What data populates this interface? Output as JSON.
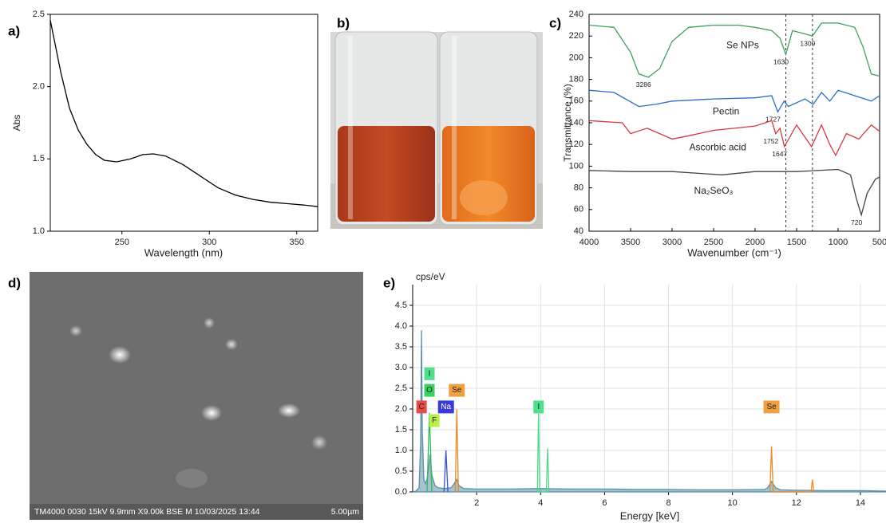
{
  "panel_labels": [
    "a)",
    "b)",
    "c)",
    "d)",
    "e)"
  ],
  "sem": {
    "caption": "TM4000 0030 15kV 9.9mm X9.00k BSE M 10/03/2025 13:44",
    "scale_bar": "5.00µm"
  },
  "chart_data": [
    {
      "type": "line",
      "x_label": "Wavelength (nm)",
      "y_label": "Abs",
      "xlim": [
        209,
        362
      ],
      "ylim": [
        1,
        2.5
      ],
      "xticks": [
        250,
        300,
        350
      ],
      "yticks": [
        {
          "value": 1,
          "label": "1.0"
        },
        {
          "value": 1.5,
          "label": "1.5"
        },
        {
          "value": 2,
          "label": "2.0"
        },
        {
          "value": 2.5,
          "label": "2.5"
        }
      ],
      "series": [
        {
          "color": "#000000",
          "x": [
            209,
            215,
            220,
            225,
            230,
            235,
            240,
            247,
            255,
            262,
            268,
            275,
            285,
            295,
            305,
            315,
            325,
            335,
            345,
            355,
            362
          ],
          "values": [
            2.46,
            2.1,
            1.85,
            1.7,
            1.6,
            1.53,
            1.49,
            1.48,
            1.5,
            1.53,
            1.535,
            1.52,
            1.46,
            1.38,
            1.3,
            1.25,
            1.22,
            1.2,
            1.19,
            1.18,
            1.17
          ]
        }
      ]
    },
    {
      "type": "line",
      "x_label": "Wavenumber (cm⁻¹)",
      "y_label": "Transmittance (%)",
      "xlim": [
        4000,
        500
      ],
      "ylim": [
        40,
        240
      ],
      "xticks": [
        4000,
        3500,
        3000,
        2500,
        2000,
        1500,
        1000,
        500
      ],
      "yticks": [
        40,
        60,
        80,
        100,
        120,
        140,
        160,
        180,
        200,
        220,
        240
      ],
      "vlines": [
        1630,
        1309
      ],
      "series": [
        {
          "name": "Se NPs",
          "color": "#3f9f5f",
          "peaks": [
            3286,
            1630,
            1309
          ],
          "x": [
            4000,
            3700,
            3500,
            3400,
            3286,
            3150,
            3000,
            2800,
            2500,
            2200,
            2000,
            1800,
            1700,
            1630,
            1550,
            1400,
            1309,
            1200,
            1000,
            800,
            700,
            600,
            500
          ],
          "values": [
            230,
            228,
            205,
            185,
            182,
            190,
            215,
            228,
            230,
            230,
            228,
            225,
            218,
            203,
            225,
            222,
            220,
            232,
            232,
            228,
            210,
            185,
            183
          ]
        },
        {
          "name": "Pectin",
          "color": "#2b6cc4",
          "peaks": [
            1727
          ],
          "x": [
            4000,
            3700,
            3400,
            3200,
            3000,
            2500,
            2000,
            1800,
            1727,
            1650,
            1600,
            1400,
            1300,
            1200,
            1100,
            1000,
            800,
            600,
            500
          ],
          "values": [
            170,
            168,
            155,
            157,
            160,
            162,
            163,
            165,
            150,
            160,
            155,
            162,
            157,
            168,
            160,
            170,
            165,
            160,
            165
          ]
        },
        {
          "name": "Ascorbic acid",
          "color": "#d9383a",
          "peaks": [
            1752,
            1647
          ],
          "x": [
            4000,
            3600,
            3500,
            3300,
            3000,
            2800,
            2500,
            2000,
            1800,
            1752,
            1700,
            1647,
            1500,
            1320,
            1200,
            1100,
            1030,
            900,
            750,
            600,
            500
          ],
          "values": [
            142,
            140,
            130,
            135,
            125,
            128,
            133,
            137,
            142,
            130,
            135,
            118,
            138,
            118,
            138,
            120,
            110,
            130,
            125,
            138,
            132
          ]
        },
        {
          "name": "Na₂SeO₃",
          "color": "#444444",
          "peaks": [
            720
          ],
          "x": [
            4000,
            3500,
            3000,
            2400,
            2000,
            1500,
            1000,
            850,
            780,
            720,
            650,
            550,
            500
          ],
          "values": [
            96,
            95,
            95,
            92,
            95,
            95,
            97,
            92,
            70,
            55,
            75,
            88,
            90
          ]
        }
      ]
    },
    {
      "type": "line",
      "x_label": "Energy [keV]",
      "y_label": "cps/eV",
      "grid": true,
      "area": true,
      "xlim": [
        0,
        14.8
      ],
      "ylim": [
        0,
        5
      ],
      "xticks": [
        2,
        4,
        6,
        8,
        10,
        12,
        14
      ],
      "yticks": [
        {
          "value": 0,
          "label": "0.0"
        },
        {
          "value": 0.5,
          "label": "0.5"
        },
        {
          "value": 1,
          "label": "1.0"
        },
        {
          "value": 1.5,
          "label": "1.5"
        },
        {
          "value": 2,
          "label": "2.0"
        },
        {
          "value": 2.5,
          "label": "2.5"
        },
        {
          "value": 3,
          "label": "3.0"
        },
        {
          "value": 3.5,
          "label": "3.5"
        },
        {
          "value": 4,
          "label": "4.0"
        },
        {
          "value": 4.5,
          "label": "4.5"
        }
      ],
      "series": [
        {
          "color": "#5b8fa8",
          "x": [
            0,
            0.1,
            0.2,
            0.25,
            0.277,
            0.3,
            0.35,
            0.4,
            0.45,
            0.5,
            0.55,
            0.6,
            0.7,
            0.8,
            1,
            1.2,
            1.3,
            1.38,
            1.45,
            1.6,
            2,
            3,
            4,
            5,
            6,
            7,
            8,
            9,
            10,
            11,
            11.1,
            11.22,
            11.35,
            11.5,
            12,
            13,
            14,
            14.8
          ],
          "values": [
            0,
            0.02,
            0.1,
            1.2,
            3.9,
            1.5,
            0.3,
            0.2,
            0.3,
            0.6,
            0.9,
            0.4,
            0.15,
            0.1,
            0.08,
            0.1,
            0.2,
            0.3,
            0.15,
            0.08,
            0.07,
            0.07,
            0.08,
            0.07,
            0.07,
            0.06,
            0.06,
            0.05,
            0.05,
            0.06,
            0.1,
            0.25,
            0.1,
            0.05,
            0.04,
            0.03,
            0.03,
            0.02
          ]
        },
        {
          "color": "#2fb85a",
          "x": [
            0.45,
            0.525,
            0.6
          ],
          "values": [
            0,
            1.9,
            0
          ]
        },
        {
          "color": "#3a4fd8",
          "x": [
            0.98,
            1.041,
            1.1
          ],
          "values": [
            0,
            1.0,
            0
          ]
        },
        {
          "color": "#f08a24",
          "x": [
            1.33,
            1.379,
            1.43
          ],
          "values": [
            0,
            2.0,
            0
          ]
        },
        {
          "color": "#4bd98a",
          "x": [
            3.9,
            3.937,
            3.97,
            4.18,
            4.22,
            4.26
          ],
          "values": [
            0,
            2.0,
            0,
            0,
            1.05,
            0
          ]
        },
        {
          "color": "#f08a24",
          "x": [
            11.17,
            11.22,
            11.27,
            12.46,
            12.5,
            12.54
          ],
          "values": [
            0,
            1.1,
            0,
            0,
            0.3,
            0
          ]
        }
      ],
      "element_labels": [
        {
          "label": "C",
          "color": "#e84a4a",
          "energy": 0.277
        },
        {
          "label": "O",
          "color": "#39d15f",
          "energy": 0.525
        },
        {
          "label": "I",
          "color": "#4de08a",
          "energy": 0.525
        },
        {
          "label": "F",
          "color": "#b8f04a",
          "energy": 0.677
        },
        {
          "label": "Na",
          "color": "#3a3ad8",
          "energy": 1.041
        },
        {
          "label": "Se",
          "color": "#f0a040",
          "energy": 1.379
        },
        {
          "label": "I",
          "color": "#4de08a",
          "energy": 3.937
        },
        {
          "label": "Se",
          "color": "#f0a040",
          "energy": 11.22
        }
      ]
    }
  ]
}
